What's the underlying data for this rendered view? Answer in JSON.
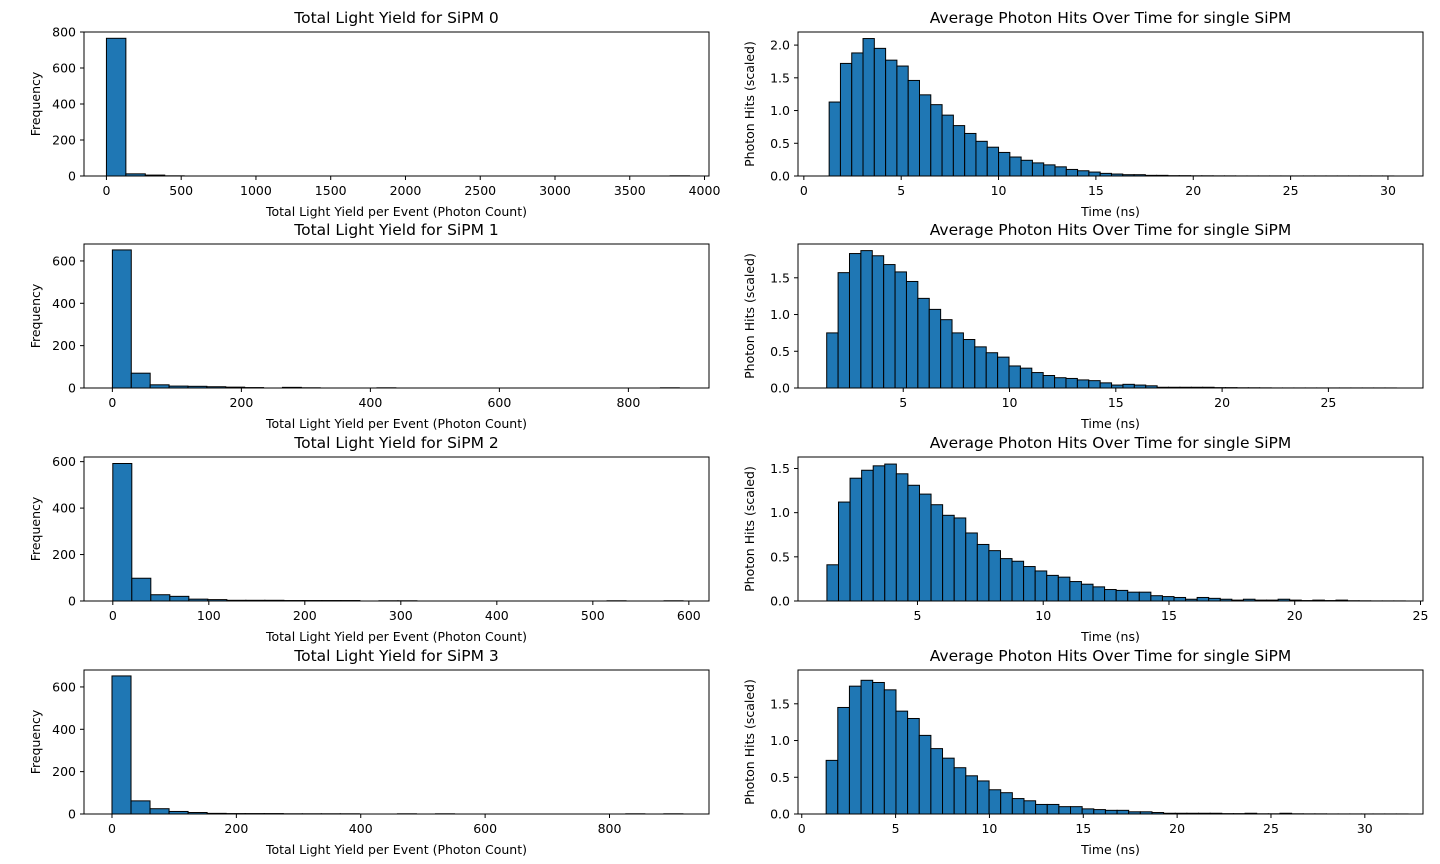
{
  "chart_data": [
    {
      "type": "bar",
      "title": "Total Light Yield for SiPM 0",
      "xlabel": "Total Light Yield per Event (Photon Count)",
      "ylabel": "Frequency",
      "xlim": [
        -150,
        4030
      ],
      "ylim": [
        0,
        800
      ],
      "xticks": [
        0,
        500,
        1000,
        1500,
        2000,
        2500,
        3000,
        3500,
        4000
      ],
      "yticks": [
        0,
        200,
        400,
        600,
        800
      ],
      "bin_start": 0,
      "bin_width": 130,
      "values": [
        765,
        12,
        5,
        1,
        0,
        0,
        0,
        0,
        0,
        0,
        0,
        0,
        0,
        0,
        0,
        0,
        0,
        0,
        0,
        0,
        0,
        0,
        0,
        0,
        0,
        0,
        0,
        0,
        0,
        1
      ]
    },
    {
      "type": "bar",
      "title": "Average Photon Hits Over Time for single SiPM",
      "xlabel": "Time (ns)",
      "ylabel": "Photon Hits (scaled)",
      "xlim": [
        -0.3,
        31.8
      ],
      "ylim": [
        0,
        2.2
      ],
      "xticks": [
        0,
        5,
        10,
        15,
        20,
        25,
        30
      ],
      "yticks": [
        "0.0",
        "0.5",
        "1.0",
        "1.5",
        "2.0"
      ],
      "bin_start": 1.3,
      "bin_width": 0.58,
      "values": [
        1.13,
        1.72,
        1.88,
        2.1,
        1.95,
        1.77,
        1.68,
        1.46,
        1.24,
        1.09,
        0.93,
        0.77,
        0.65,
        0.53,
        0.44,
        0.36,
        0.29,
        0.24,
        0.2,
        0.17,
        0.14,
        0.1,
        0.08,
        0.06,
        0.04,
        0.03,
        0.02,
        0.02,
        0.01,
        0.01,
        0.005,
        0.005,
        0.003,
        0.003,
        0.002,
        0.002,
        0.001,
        0.001,
        0.001,
        0.001,
        0.001,
        0.001,
        0.001,
        0.001,
        0.001,
        0.001,
        0.001,
        0.001,
        0.001,
        0.001
      ]
    },
    {
      "type": "bar",
      "title": "Total Light Yield for SiPM 1",
      "xlabel": "Total Light Yield per Event (Photon Count)",
      "ylabel": "Frequency",
      "xlim": [
        -44,
        925
      ],
      "ylim": [
        0,
        680
      ],
      "xticks": [
        0,
        200,
        400,
        600,
        800
      ],
      "yticks": [
        0,
        200,
        400,
        600
      ],
      "bin_start": 0,
      "bin_width": 29.3,
      "values": [
        652,
        70,
        15,
        9,
        8,
        6,
        4,
        2,
        0,
        3,
        1,
        0,
        0,
        0,
        1,
        0,
        0,
        0,
        0,
        0,
        0,
        0,
        0,
        0,
        0,
        0,
        0,
        0,
        0,
        1
      ]
    },
    {
      "type": "bar",
      "title": "Average Photon Hits Over Time for single SiPM",
      "xlabel": "Time (ns)",
      "ylabel": "Photon Hits (scaled)",
      "xlim": [
        0.05,
        29.45
      ],
      "ylim": [
        0,
        1.96
      ],
      "xticks": [
        5,
        10,
        15,
        20,
        25
      ],
      "yticks": [
        "0.0",
        "0.5",
        "1.0",
        "1.5"
      ],
      "bin_start": 1.4,
      "bin_width": 0.536,
      "values": [
        0.75,
        1.57,
        1.83,
        1.87,
        1.8,
        1.68,
        1.58,
        1.45,
        1.22,
        1.07,
        0.93,
        0.75,
        0.66,
        0.56,
        0.48,
        0.42,
        0.3,
        0.27,
        0.21,
        0.17,
        0.14,
        0.13,
        0.11,
        0.1,
        0.07,
        0.04,
        0.05,
        0.04,
        0.03,
        0.01,
        0.01,
        0.01,
        0.01,
        0.01,
        0.005,
        0.005,
        0.003,
        0.003,
        0.002,
        0.001,
        0.001,
        0.001,
        0.001,
        0.001,
        0.001,
        0.001,
        0.001,
        0.001,
        0.001,
        0.001
      ]
    },
    {
      "type": "bar",
      "title": "Total Light Yield for SiPM 2",
      "xlabel": "Total Light Yield per Event (Photon Count)",
      "ylabel": "Frequency",
      "xlim": [
        -30,
        621
      ],
      "ylim": [
        0,
        620
      ],
      "xticks": [
        0,
        100,
        200,
        300,
        400,
        500,
        600
      ],
      "yticks": [
        0,
        200,
        400,
        600
      ],
      "bin_start": 0,
      "bin_width": 19.8,
      "values": [
        592,
        98,
        27,
        20,
        8,
        6,
        3,
        3,
        3,
        2,
        2,
        2,
        2,
        0,
        1,
        1,
        0,
        0,
        0,
        0,
        0,
        0,
        0,
        0,
        0,
        0,
        1,
        0,
        0,
        1
      ]
    },
    {
      "type": "bar",
      "title": "Average Photon Hits Over Time for single SiPM",
      "xlabel": "Time (ns)",
      "ylabel": "Photon Hits (scaled)",
      "xlim": [
        0.25,
        25.1
      ],
      "ylim": [
        0,
        1.63
      ],
      "xticks": [
        5,
        10,
        15,
        20,
        25
      ],
      "yticks": [
        "0.0",
        "0.5",
        "1.0",
        "1.5"
      ],
      "bin_start": 1.4,
      "bin_width": 0.46,
      "values": [
        0.41,
        1.12,
        1.39,
        1.48,
        1.53,
        1.55,
        1.44,
        1.31,
        1.21,
        1.09,
        0.97,
        0.94,
        0.77,
        0.64,
        0.57,
        0.48,
        0.45,
        0.39,
        0.34,
        0.29,
        0.27,
        0.22,
        0.19,
        0.16,
        0.13,
        0.12,
        0.1,
        0.1,
        0.06,
        0.05,
        0.04,
        0.02,
        0.04,
        0.03,
        0.02,
        0.01,
        0.02,
        0.01,
        0.01,
        0.02,
        0.01,
        0.005,
        0.01,
        0.005,
        0.01,
        0.003,
        0.002,
        0.001,
        0.001,
        0.001
      ]
    },
    {
      "type": "bar",
      "title": "Total Light Yield for SiPM 3",
      "xlabel": "Total Light Yield per Event (Photon Count)",
      "ylabel": "Frequency",
      "xlim": [
        -45,
        960
      ],
      "ylim": [
        0,
        680
      ],
      "xticks": [
        0,
        200,
        400,
        600,
        800
      ],
      "yticks": [
        0,
        200,
        400,
        600
      ],
      "bin_start": 0,
      "bin_width": 30.6,
      "values": [
        652,
        62,
        25,
        12,
        7,
        3,
        2,
        2,
        2,
        1,
        1,
        1,
        1,
        0,
        0,
        1,
        0,
        1,
        0,
        0,
        0,
        0,
        0,
        0,
        0,
        0,
        0,
        1,
        0,
        1
      ]
    },
    {
      "type": "bar",
      "title": "Average Photon Hits Over Time for single SiPM",
      "xlabel": "Time (ns)",
      "ylabel": "Photon Hits (scaled)",
      "xlim": [
        -0.2,
        33.1
      ],
      "ylim": [
        0,
        1.96
      ],
      "xticks": [
        0,
        5,
        10,
        15,
        20,
        25,
        30
      ],
      "yticks": [
        "0.0",
        "0.5",
        "1.0",
        "1.5"
      ],
      "bin_start": 1.3,
      "bin_width": 0.62,
      "values": [
        0.73,
        1.45,
        1.74,
        1.82,
        1.79,
        1.69,
        1.4,
        1.3,
        1.07,
        0.89,
        0.76,
        0.63,
        0.52,
        0.45,
        0.33,
        0.29,
        0.21,
        0.18,
        0.13,
        0.13,
        0.1,
        0.1,
        0.07,
        0.06,
        0.05,
        0.05,
        0.03,
        0.03,
        0.02,
        0.01,
        0.01,
        0.01,
        0.01,
        0.01,
        0.005,
        0.005,
        0.01,
        0.003,
        0.003,
        0.01,
        0.003,
        0.002,
        0.002,
        0.001,
        0.001,
        0.001,
        0.001,
        0.001,
        0.001,
        0.001
      ]
    }
  ],
  "style": {
    "bar_color": "#1f77b4",
    "edge_color": "#000000",
    "background": "#ffffff"
  }
}
